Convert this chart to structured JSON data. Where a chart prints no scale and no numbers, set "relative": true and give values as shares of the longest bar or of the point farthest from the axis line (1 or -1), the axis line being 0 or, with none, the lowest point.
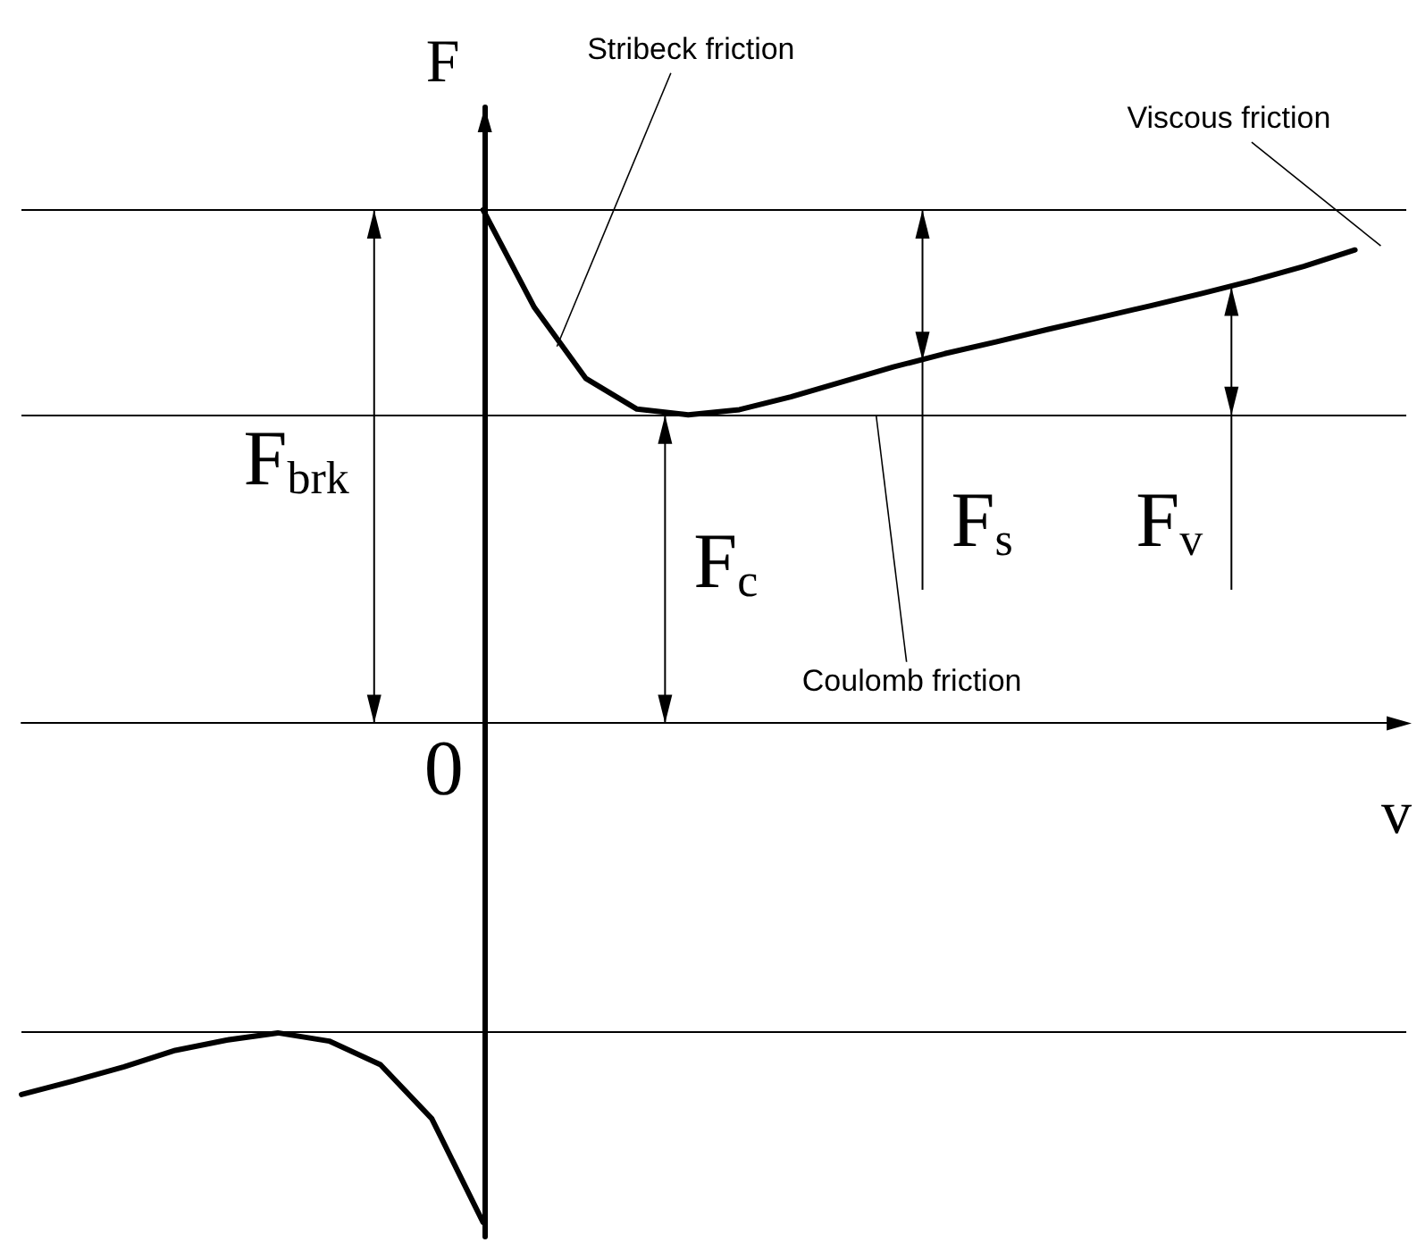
{
  "chart_data": {
    "type": "line",
    "relative": true,
    "xlabel": "v",
    "ylabel": "F",
    "categories": [
      null,
      null,
      null,
      null,
      null,
      null,
      null,
      null,
      null,
      null,
      null,
      null,
      null,
      null,
      null,
      null,
      null,
      null,
      null,
      null,
      null,
      null,
      null,
      null,
      null,
      null,
      null,
      null
    ],
    "grid": false,
    "marker": "none",
    "line_style": "solid",
    "series": [
      {
        "color": "#000000",
        "values": [
          -0.723,
          -0.697,
          -0.669,
          -0.637,
          -0.617,
          -0.603,
          -0.619,
          -0.665,
          -0.77,
          -0.972,
          null,
          null,
          null,
          null,
          null,
          null,
          null,
          null,
          null,
          null,
          null,
          null,
          null,
          null,
          null,
          null,
          null,
          null
        ]
      },
      {
        "color": "#000000",
        "values": [
          null,
          null,
          null,
          null,
          null,
          null,
          null,
          null,
          null,
          1.0,
          0.81,
          0.672,
          0.612,
          0.601,
          0.611,
          0.636,
          0.665,
          0.694,
          0.72,
          0.743,
          0.767,
          0.79,
          0.813,
          0.837,
          0.862,
          0.89,
          0.922,
          null
        ]
      }
    ],
    "ref_lines": [
      {
        "axis": "y",
        "value": 1.0,
        "label": null,
        "color": "#000000"
      },
      {
        "axis": "y",
        "value": 0.6,
        "label": null,
        "color": "#000000"
      },
      {
        "axis": "y",
        "value": -0.603,
        "label": null,
        "color": "#000000"
      }
    ],
    "annotations": [
      "Stribeck friction",
      "Viscous friction",
      "Coulomb friction",
      "F$_{brk}$",
      "F$_{c}$",
      "F$_{s}$",
      "F$_{v}$",
      "0"
    ]
  }
}
